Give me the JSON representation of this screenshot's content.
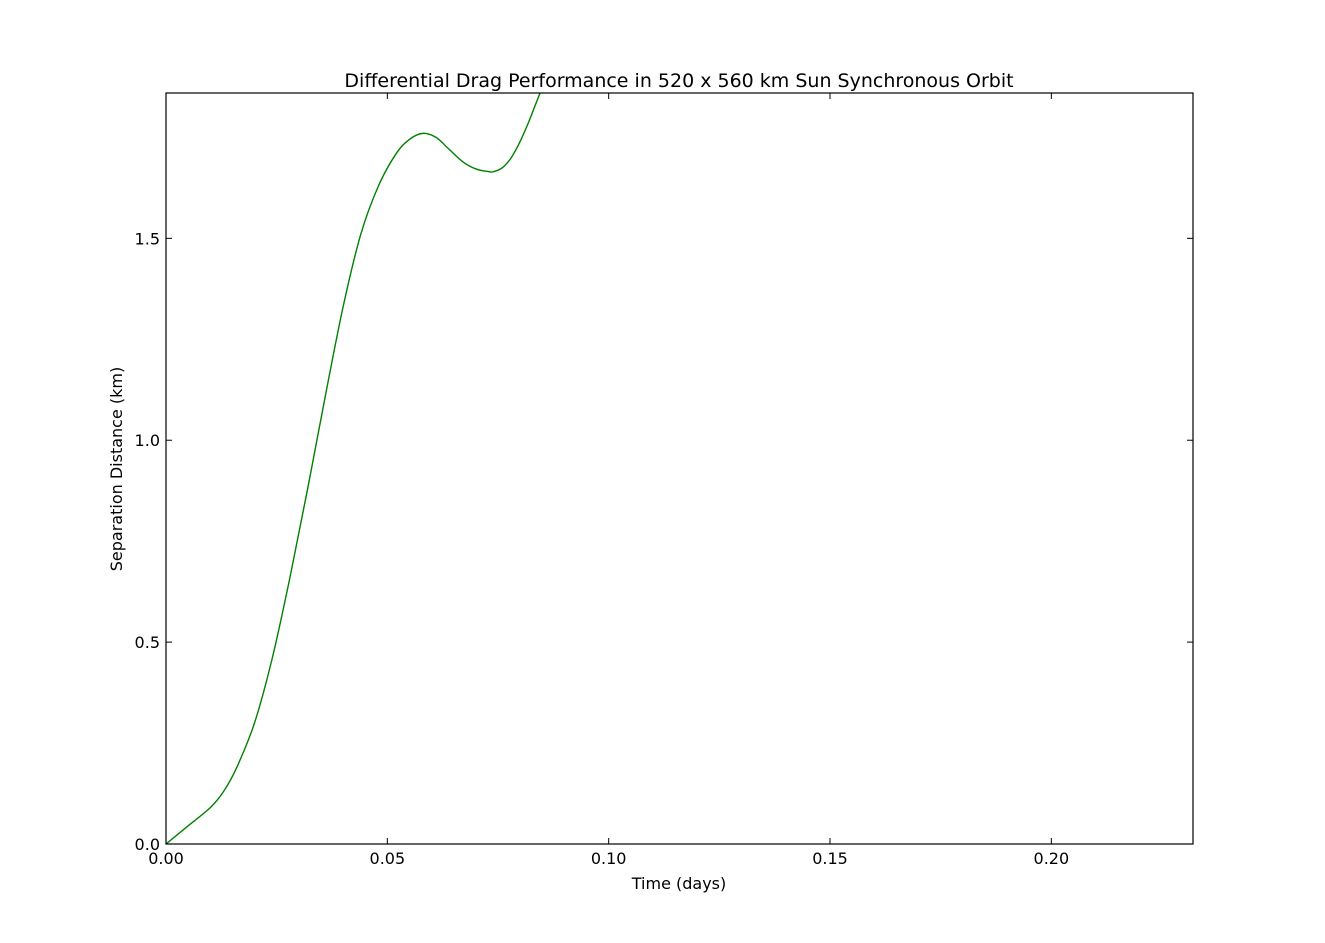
{
  "chart_data": {
    "type": "line",
    "title": "Differential Drag Performance in 520 x 560 km Sun Synchronous Orbit",
    "xlabel": "Time (days)",
    "ylabel": "Separation Distance (km)",
    "xlim": [
      0.0,
      0.232
    ],
    "ylim": [
      0.0,
      1.86
    ],
    "xticks": [
      0.0,
      0.05,
      0.1,
      0.15,
      0.2
    ],
    "xtick_labels": [
      "0.00",
      "0.05",
      "0.10",
      "0.15",
      "0.20"
    ],
    "yticks": [
      0.0,
      0.5,
      1.0,
      1.5
    ],
    "ytick_labels": [
      "0.0",
      "0.5",
      "1.0",
      "1.5"
    ],
    "grid": false,
    "legend": "none",
    "series": [
      {
        "color": "#008000",
        "x": [
          0.0,
          0.005,
          0.01,
          0.013,
          0.016,
          0.02,
          0.024,
          0.028,
          0.032,
          0.036,
          0.04,
          0.044,
          0.048,
          0.052,
          0.055,
          0.058,
          0.061,
          0.064,
          0.067,
          0.07,
          0.073,
          0.074,
          0.076,
          0.078,
          0.08,
          0.082,
          0.0845,
          0.085
        ],
        "y": [
          0.0,
          0.045,
          0.09,
          0.13,
          0.19,
          0.3,
          0.46,
          0.66,
          0.88,
          1.11,
          1.33,
          1.51,
          1.63,
          1.71,
          1.745,
          1.76,
          1.75,
          1.72,
          1.69,
          1.672,
          1.665,
          1.665,
          1.675,
          1.7,
          1.74,
          1.79,
          1.86,
          1.87
        ]
      }
    ]
  }
}
